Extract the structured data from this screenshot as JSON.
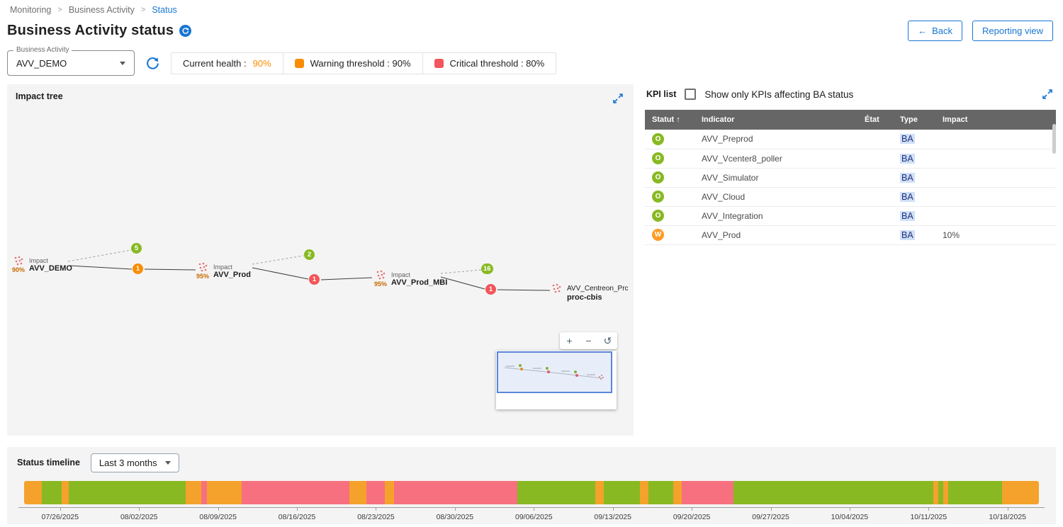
{
  "breadcrumb": {
    "items": [
      "Monitoring",
      "Business Activity",
      "Status"
    ],
    "separator": ">"
  },
  "header": {
    "title": "Business Activity status",
    "back_arrow": "←",
    "back_button": "Back",
    "reporting_button": "Reporting view"
  },
  "filters": {
    "ba_select": {
      "label": "Business Activity",
      "value": "AVV_DEMO"
    },
    "current_health": {
      "label": "Current health :",
      "value": "90%"
    },
    "warning_threshold": {
      "label": "Warning threshold : 90%"
    },
    "critical_threshold": {
      "label": "Critical threshold : 80%"
    }
  },
  "impact_tree": {
    "title": "Impact tree",
    "nodes": [
      {
        "impact_label": "Impact",
        "name": "AVV_DEMO",
        "health": "90%"
      },
      {
        "impact_label": "Impact",
        "name": "AVV_Prod",
        "health": "95%"
      },
      {
        "impact_label": "Impact",
        "name": "AVV_Prod_MBI",
        "health": "95%"
      },
      {
        "name_line1": "AVV_Centreon_Prc",
        "name_line2": "proc-cbis"
      }
    ],
    "badges": [
      {
        "value": "5",
        "status": "ok"
      },
      {
        "value": "1",
        "status": "warning"
      },
      {
        "value": "2",
        "status": "ok"
      },
      {
        "value": "1",
        "status": "critical"
      },
      {
        "value": "16",
        "status": "ok"
      },
      {
        "value": "1",
        "status": "critical"
      }
    ],
    "zoom_controls": {
      "zoom_in": "+",
      "zoom_out": "−",
      "reset": "↺"
    }
  },
  "kpi_list": {
    "title": "KPI list",
    "filter_checkbox_label": "Show only KPIs affecting BA status",
    "columns": [
      "Statut",
      "Indicator",
      "État",
      "Type",
      "Impact"
    ],
    "sort_arrow": "↑",
    "status_colors": {
      "O": "#88B922",
      "W": "#FD9B27"
    },
    "rows": [
      {
        "status": "O",
        "indicator": "AVV_Preprod",
        "etat": "",
        "type": "BA",
        "impact": ""
      },
      {
        "status": "O",
        "indicator": "AVV_Vcenter8_poller",
        "etat": "",
        "type": "BA",
        "impact": ""
      },
      {
        "status": "O",
        "indicator": "AVV_Simulator",
        "etat": "",
        "type": "BA",
        "impact": ""
      },
      {
        "status": "O",
        "indicator": "AVV_Cloud",
        "etat": "",
        "type": "BA",
        "impact": ""
      },
      {
        "status": "O",
        "indicator": "AVV_Integration",
        "etat": "",
        "type": "BA",
        "impact": ""
      },
      {
        "status": "W",
        "indicator": "AVV_Prod",
        "etat": "",
        "type": "BA",
        "impact": "10%"
      }
    ]
  },
  "timeline": {
    "title": "Status timeline",
    "range_select": {
      "value": "Last 3 months"
    }
  },
  "chart_data": {
    "type": "bar",
    "title": "Status timeline",
    "legend": [
      "ok",
      "warning",
      "critical"
    ],
    "colors": {
      "ok": "#88B922",
      "warning": "#F4A22C",
      "critical": "#F7707F"
    },
    "x_tick_labels": [
      "07/26/2025",
      "08/02/2025",
      "08/09/2025",
      "08/16/2025",
      "08/23/2025",
      "08/30/2025",
      "09/06/2025",
      "09/13/2025",
      "09/20/2025",
      "09/27/2025",
      "10/04/2025",
      "10/11/2025",
      "10/18/2025"
    ],
    "segments": [
      {
        "status": "warning",
        "width_pct": 1.74
      },
      {
        "status": "ok",
        "width_pct": 1.95
      },
      {
        "status": "warning",
        "width_pct": 0.7
      },
      {
        "status": "ok",
        "width_pct": 11.5
      },
      {
        "status": "warning",
        "width_pct": 1.6
      },
      {
        "status": "critical",
        "width_pct": 0.56
      },
      {
        "status": "warning",
        "width_pct": 3.41
      },
      {
        "status": "critical",
        "width_pct": 10.59
      },
      {
        "status": "warning",
        "width_pct": 1.67
      },
      {
        "status": "critical",
        "width_pct": 1.81
      },
      {
        "status": "warning",
        "width_pct": 0.91
      },
      {
        "status": "critical",
        "width_pct": 12.2
      },
      {
        "status": "ok",
        "width_pct": 7.67
      },
      {
        "status": "warning",
        "width_pct": 0.84
      },
      {
        "status": "ok",
        "width_pct": 3.55
      },
      {
        "status": "warning",
        "width_pct": 0.84
      },
      {
        "status": "ok",
        "width_pct": 2.44
      },
      {
        "status": "warning",
        "width_pct": 0.84
      },
      {
        "status": "critical",
        "width_pct": 5.09
      },
      {
        "status": "ok",
        "width_pct": 19.72
      },
      {
        "status": "warning",
        "width_pct": 0.49
      },
      {
        "status": "ok",
        "width_pct": 0.49
      },
      {
        "status": "warning",
        "width_pct": 0.49
      },
      {
        "status": "ok",
        "width_pct": 5.28
      },
      {
        "status": "warning",
        "width_pct": 3.62
      }
    ]
  },
  "colors": {
    "accent_blue": "#1976D2",
    "warning_orange": "#FB8C00",
    "critical_red": "#F3565C",
    "ok_green": "#88B922",
    "panel_gray": "#F4F4F4",
    "table_header_gray": "#666666",
    "type_chip_bg": "#CFE0F7"
  }
}
